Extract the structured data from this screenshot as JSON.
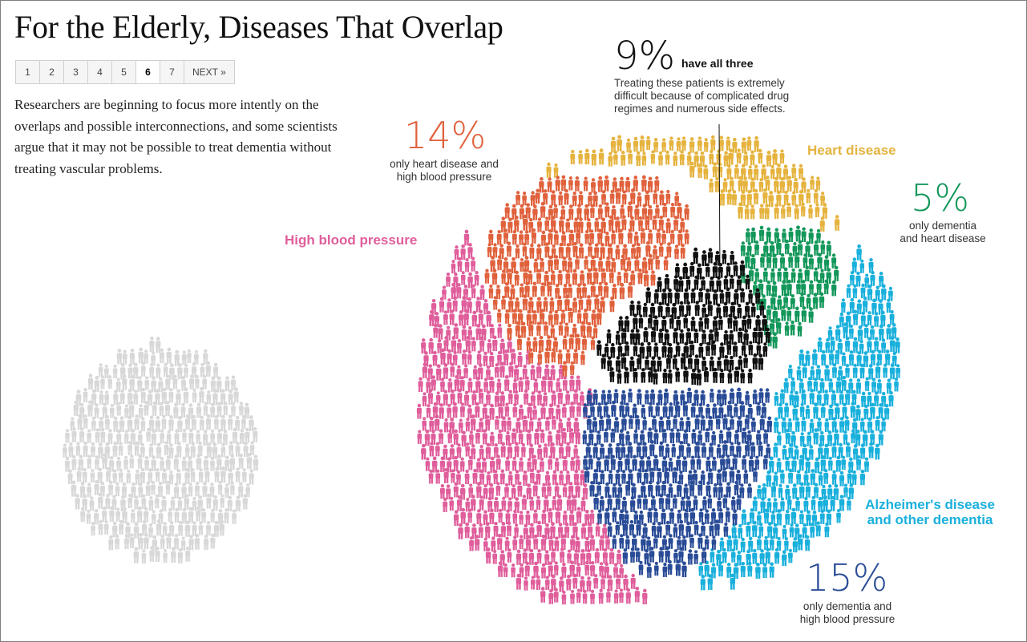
{
  "title": "For the Elderly, Diseases That Overlap",
  "pagination": {
    "pages": [
      "1",
      "2",
      "3",
      "4",
      "5",
      "6",
      "7"
    ],
    "current": "6",
    "next_label": "NEXT »"
  },
  "intro": "Researchers are beginning to focus more intently on the overlaps and possible interconnections, and some scientists argue that it may not be possible to treat dementia without treating vascular problems.",
  "all_three": {
    "percent": "9%",
    "label": "have all three",
    "note": [
      "Treating these patients is extremely",
      "difficult because of complicated drug",
      "regimes and numerous side effects."
    ]
  },
  "heart_bp": {
    "percent": "14%",
    "note": [
      "only heart disease and",
      "high blood pressure"
    ]
  },
  "dementia_heart": {
    "percent": "5%",
    "note": [
      "only dementia",
      "and heart disease"
    ]
  },
  "dementia_bp": {
    "percent": "15%",
    "note": [
      "only dementia and",
      "high blood pressure"
    ]
  },
  "categories": {
    "heart_disease": "Heart disease",
    "high_blood_pressure": "High blood pressure",
    "dementia": [
      "Alzheimer's disease",
      "and other dementia"
    ]
  },
  "colors": {
    "heart_disease": "#e5b33e",
    "high_blood_pressure": "#df5e9b",
    "dementia": "#1ab0dc",
    "heart_bp": "#e0623d",
    "dementia_heart": "#13975a",
    "dementia_bp": "#2a4c97",
    "all_three": "#111111",
    "other": "#d8d8d8",
    "dementia_heart_text": "#13975a",
    "dementia_bp_text": "#2a4c97"
  }
}
